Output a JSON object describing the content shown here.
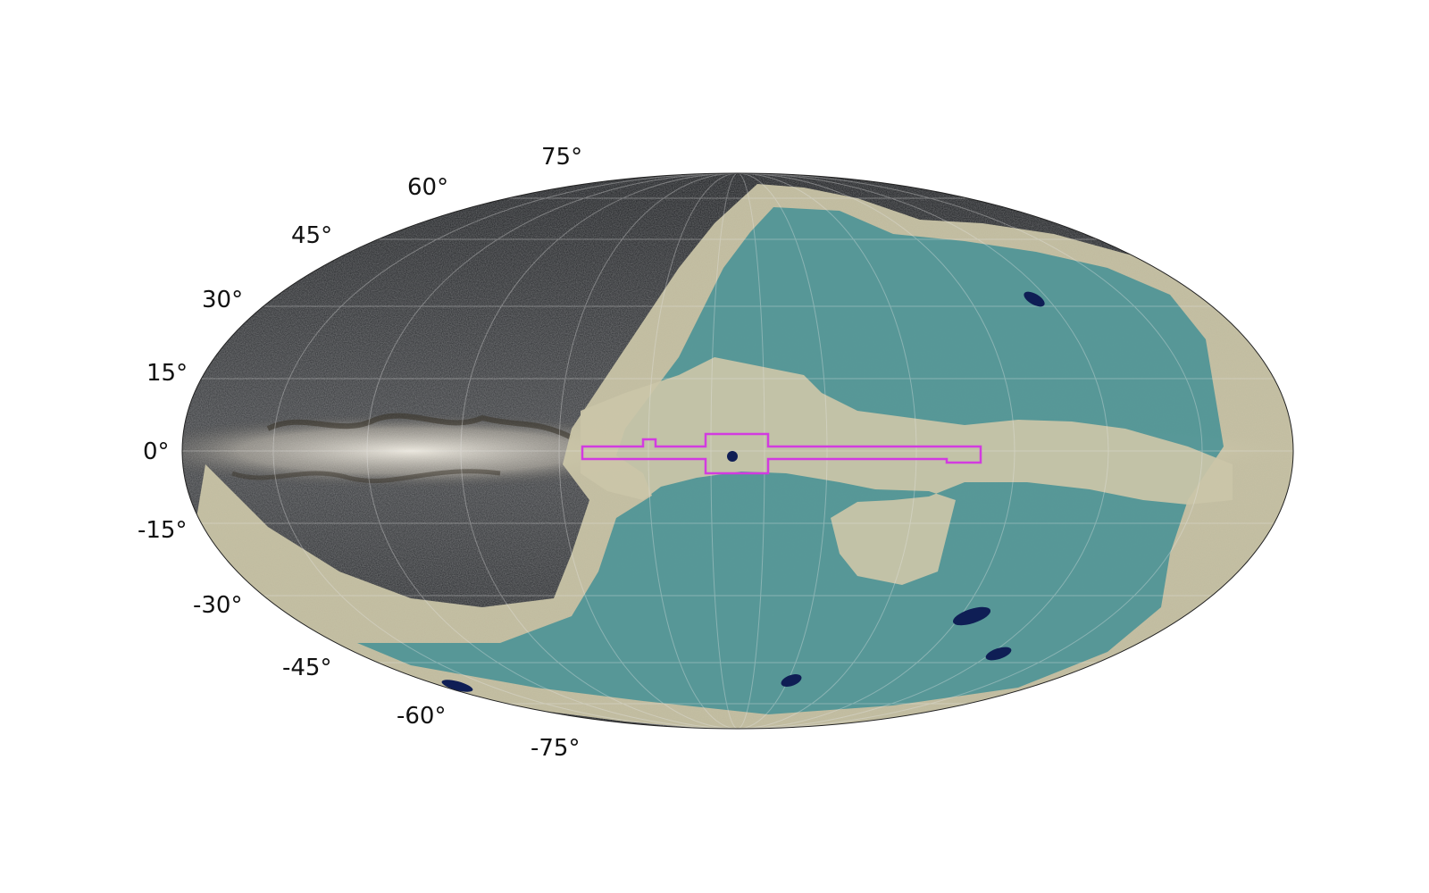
{
  "map": {
    "projection": "mollweide",
    "background_image": "galactic-star-field",
    "latitude_labels": [
      "75°",
      "60°",
      "45°",
      "30°",
      "15°",
      "0°",
      "-15°",
      "-30°",
      "-45°",
      "-60°",
      "-75°"
    ],
    "colors": {
      "sky_dark": "#17191c",
      "milky_way": "#d9d4c8",
      "survey_teal": "#3f8f95",
      "survey_beige": "#cbc6a8",
      "deep_field_navy": "#0f1e55",
      "footprint_magenta": "#d23be0",
      "graticule": "#e8e8e8"
    }
  }
}
